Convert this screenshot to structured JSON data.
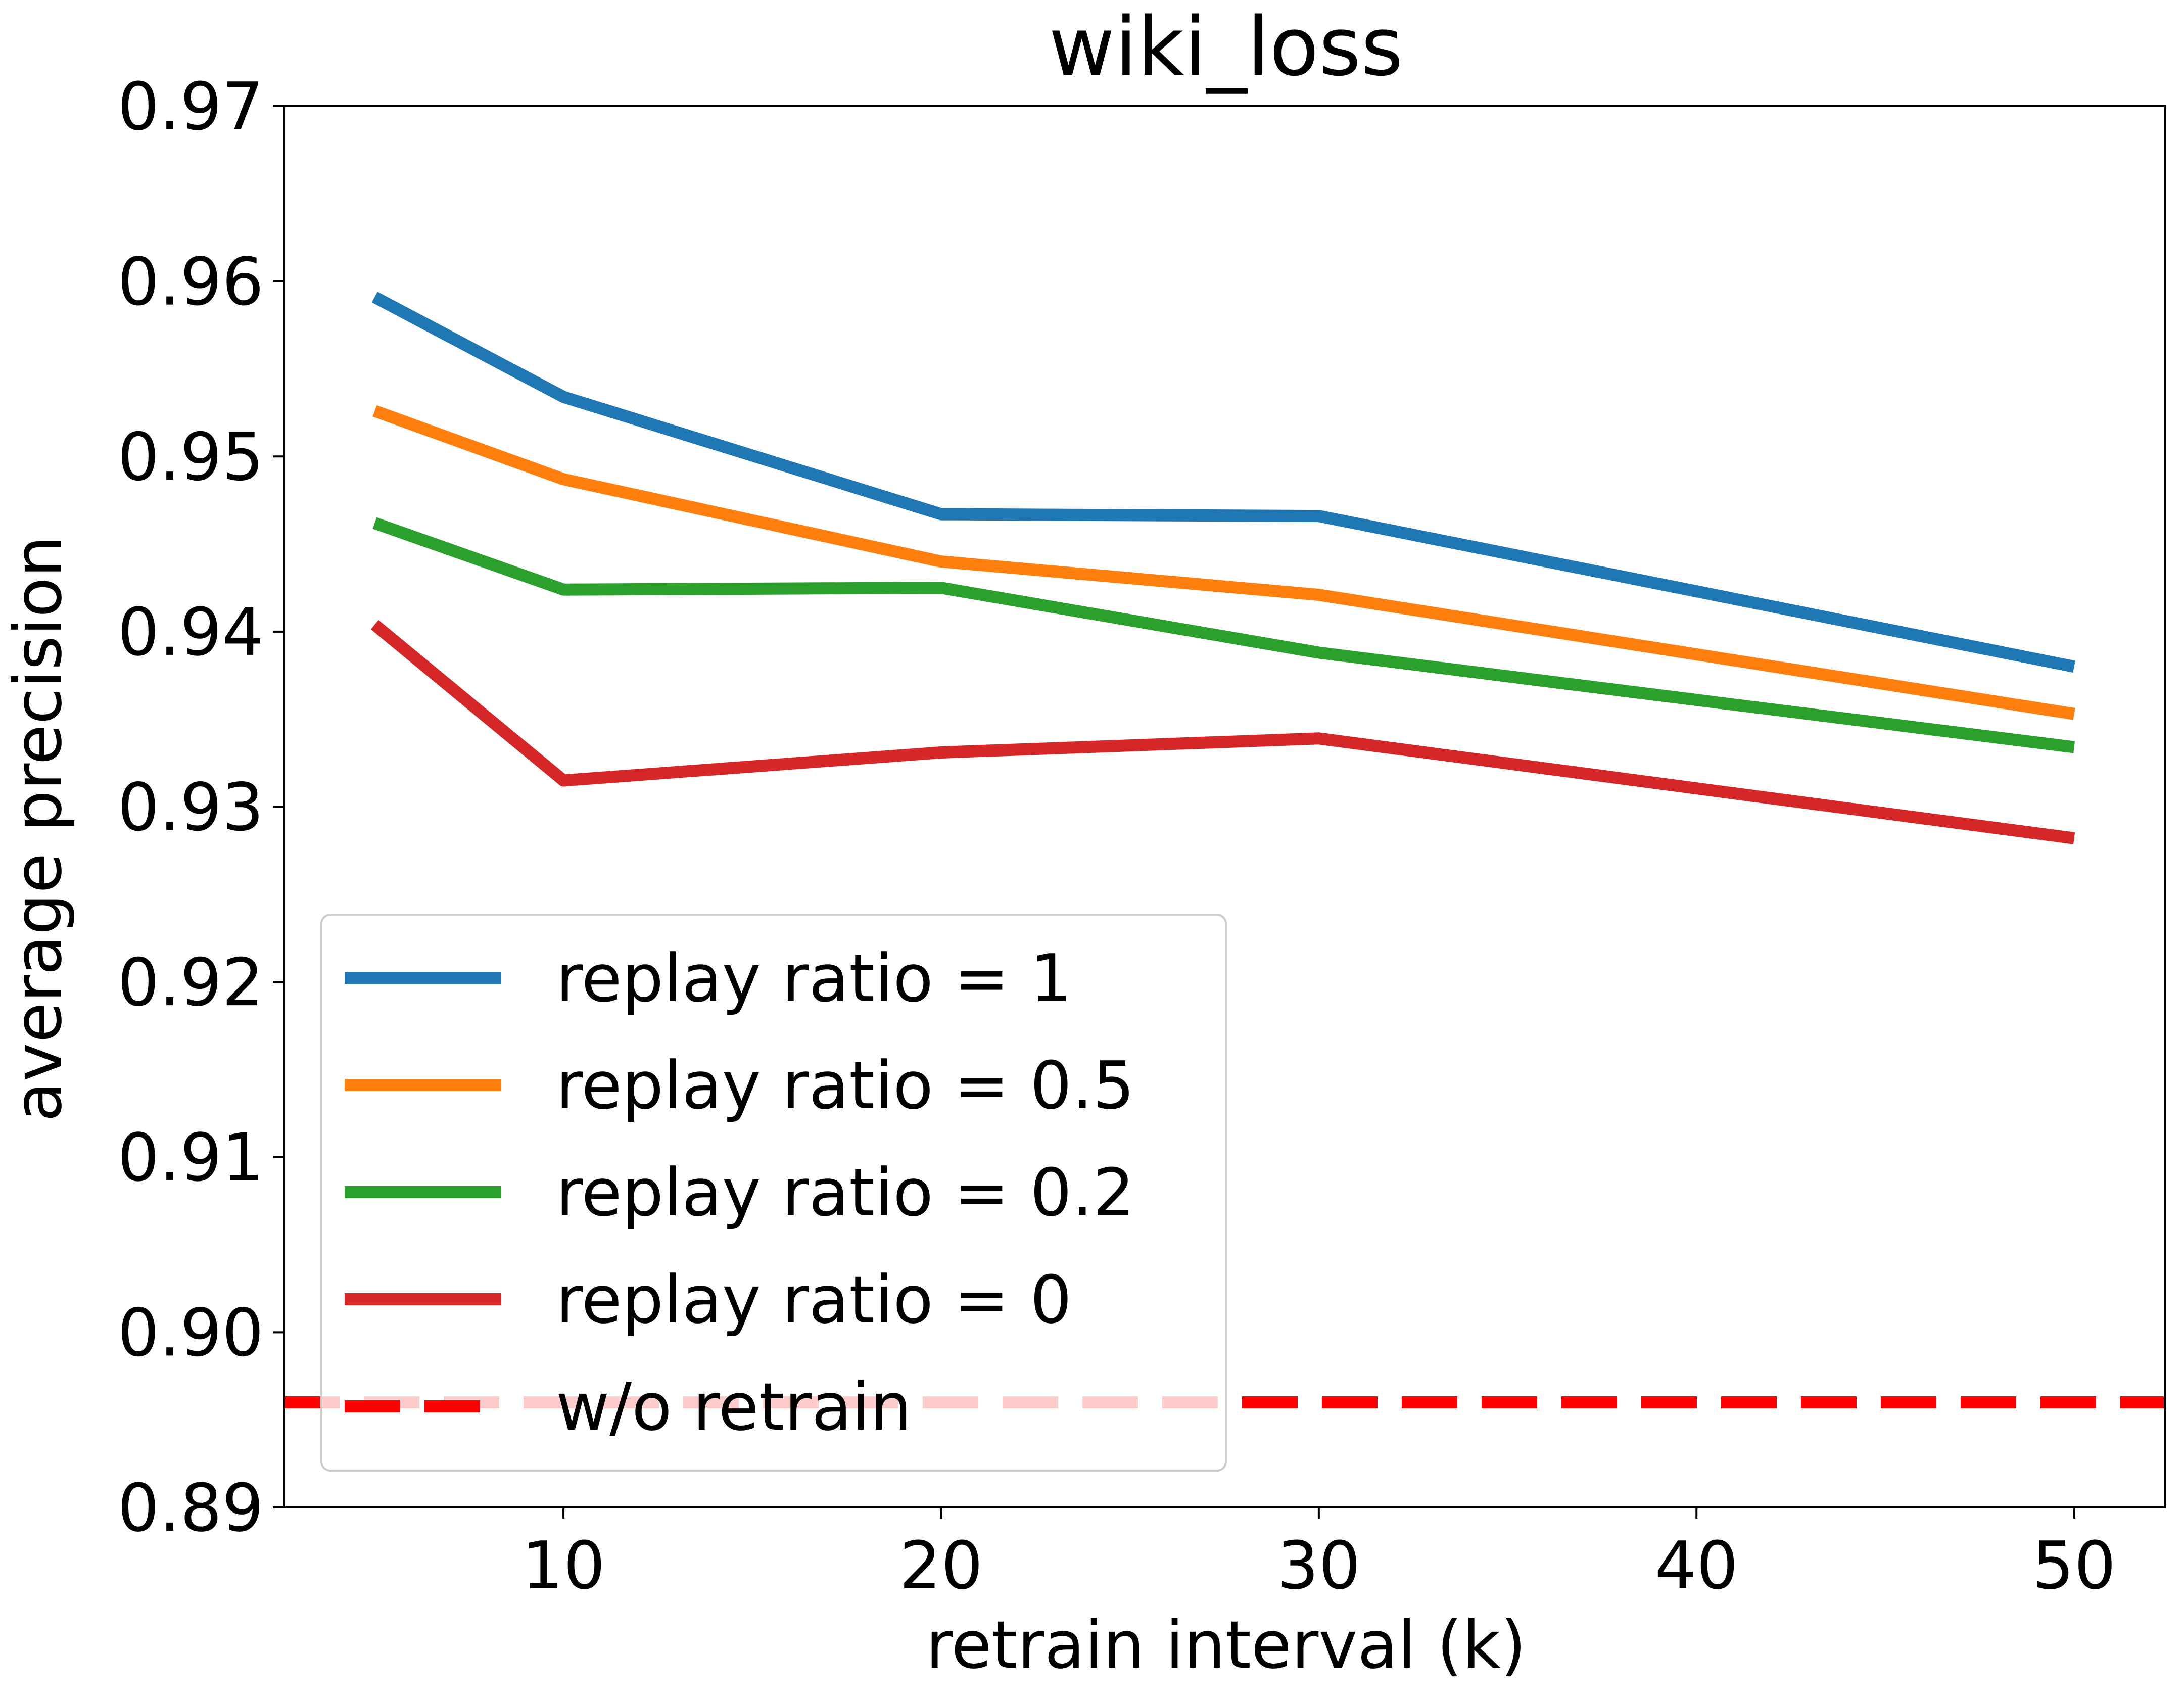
{
  "chart_data": {
    "type": "line",
    "title": "wiki_loss",
    "xlabel": "retrain interval (k)",
    "ylabel": "average precision",
    "xlim": [
      2.6,
      52.4
    ],
    "ylim": [
      0.89,
      0.97
    ],
    "xticks": [
      10,
      20,
      30,
      40,
      50
    ],
    "xtick_labels": [
      "10",
      "20",
      "30",
      "40",
      "50"
    ],
    "yticks": [
      0.89,
      0.9,
      0.91,
      0.92,
      0.93,
      0.94,
      0.95,
      0.96,
      0.97
    ],
    "ytick_labels": [
      "0.89",
      "0.90",
      "0.91",
      "0.92",
      "0.93",
      "0.94",
      "0.95",
      "0.96",
      "0.97"
    ],
    "x": [
      5,
      10,
      20,
      30,
      50
    ],
    "series": [
      {
        "name": "replay ratio = 1",
        "color": "#1f77b4",
        "values": [
          0.9591,
          0.9534,
          0.9467,
          0.9466,
          0.938
        ]
      },
      {
        "name": "replay ratio = 0.5",
        "color": "#ff7f0e",
        "values": [
          0.9526,
          0.9487,
          0.944,
          0.9421,
          0.9353
        ]
      },
      {
        "name": "replay ratio = 0.2",
        "color": "#2ca02c",
        "values": [
          0.9462,
          0.9424,
          0.9425,
          0.9388,
          0.9334
        ]
      },
      {
        "name": "replay ratio = 0",
        "color": "#d62728",
        "values": [
          0.9404,
          0.9315,
          0.9331,
          0.9339,
          0.9282
        ]
      }
    ],
    "reference_lines": [
      {
        "name": "w/o retrain",
        "y": 0.896,
        "color": "#ff0000",
        "style": "dashed"
      }
    ],
    "legend": {
      "position": "lower-left"
    },
    "grid": false
  }
}
